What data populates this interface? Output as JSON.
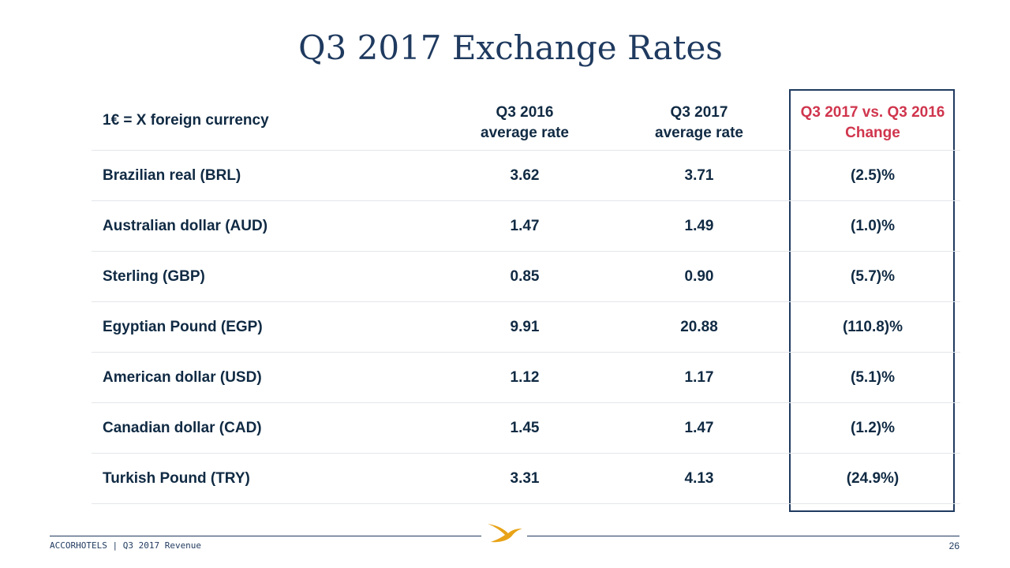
{
  "title": "Q3 2017 Exchange Rates",
  "header": {
    "label": "1€ = X foreign currency",
    "col1_line1": "Q3 2016",
    "col1_line2": "average rate",
    "col2_line1": "Q3 2017",
    "col2_line2": "average rate",
    "col3_line1": "Q3 2017 vs. Q3 2016",
    "col3_line2": "Change"
  },
  "rows": [
    {
      "name": "Brazilian real (BRL)",
      "q3_2016": "3.62",
      "q3_2017": "3.71",
      "change": "(2.5)%"
    },
    {
      "name": "Australian dollar (AUD)",
      "q3_2016": "1.47",
      "q3_2017": "1.49",
      "change": "(1.0)%"
    },
    {
      "name": "Sterling (GBP)",
      "q3_2016": "0.85",
      "q3_2017": "0.90",
      "change": "(5.7)%"
    },
    {
      "name": "Egyptian Pound (EGP)",
      "q3_2016": "9.91",
      "q3_2017": "20.88",
      "change": "(110.8)%"
    },
    {
      "name": "American dollar (USD)",
      "q3_2016": "1.12",
      "q3_2017": "1.17",
      "change": "(5.1)%"
    },
    {
      "name": "Canadian dollar (CAD)",
      "q3_2016": "1.45",
      "q3_2017": "1.47",
      "change": "(1.2)%"
    },
    {
      "name": "Turkish Pound (TRY)",
      "q3_2016": "3.31",
      "q3_2017": "4.13",
      "change": "(24.9%)"
    }
  ],
  "footer": {
    "text": "ACCORHOTELS | Q3 2017 Revenue",
    "page": "26"
  },
  "colors": {
    "title": "#1f3a5f",
    "text": "#102a43",
    "accent": "#d0354d",
    "logo": "#e8a317"
  },
  "icons": {
    "logo": "accorhotels-bird-logo"
  }
}
